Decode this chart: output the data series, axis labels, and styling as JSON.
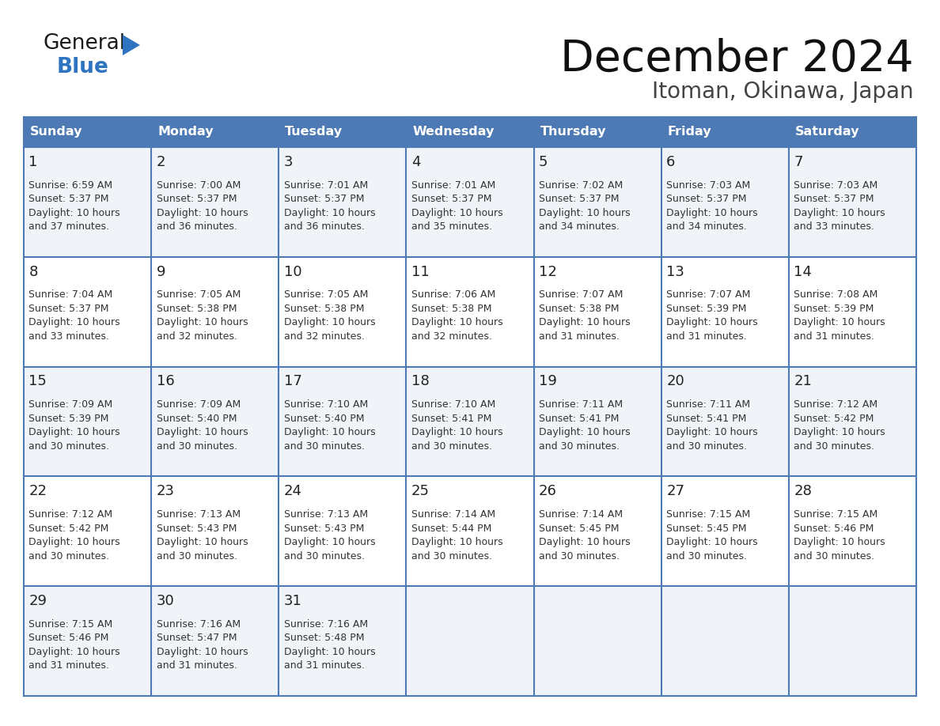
{
  "title": "December 2024",
  "subtitle": "Itoman, Okinawa, Japan",
  "header_color": "#4d7ab5",
  "header_text_color": "#FFFFFF",
  "day_names": [
    "Sunday",
    "Monday",
    "Tuesday",
    "Wednesday",
    "Thursday",
    "Friday",
    "Saturday"
  ],
  "cell_bg_color": "#f0f4f8",
  "cell_bg_white": "#FFFFFF",
  "border_color": "#4d7ab5",
  "day_num_color": "#222222",
  "info_text_color": "#333333",
  "calendar_data": [
    [
      {
        "day": 1,
        "sunrise": "6:59 AM",
        "sunset": "5:37 PM",
        "daylight": "10 hours\nand 37 minutes."
      },
      {
        "day": 2,
        "sunrise": "7:00 AM",
        "sunset": "5:37 PM",
        "daylight": "10 hours\nand 36 minutes."
      },
      {
        "day": 3,
        "sunrise": "7:01 AM",
        "sunset": "5:37 PM",
        "daylight": "10 hours\nand 36 minutes."
      },
      {
        "day": 4,
        "sunrise": "7:01 AM",
        "sunset": "5:37 PM",
        "daylight": "10 hours\nand 35 minutes."
      },
      {
        "day": 5,
        "sunrise": "7:02 AM",
        "sunset": "5:37 PM",
        "daylight": "10 hours\nand 34 minutes."
      },
      {
        "day": 6,
        "sunrise": "7:03 AM",
        "sunset": "5:37 PM",
        "daylight": "10 hours\nand 34 minutes."
      },
      {
        "day": 7,
        "sunrise": "7:03 AM",
        "sunset": "5:37 PM",
        "daylight": "10 hours\nand 33 minutes."
      }
    ],
    [
      {
        "day": 8,
        "sunrise": "7:04 AM",
        "sunset": "5:37 PM",
        "daylight": "10 hours\nand 33 minutes."
      },
      {
        "day": 9,
        "sunrise": "7:05 AM",
        "sunset": "5:38 PM",
        "daylight": "10 hours\nand 32 minutes."
      },
      {
        "day": 10,
        "sunrise": "7:05 AM",
        "sunset": "5:38 PM",
        "daylight": "10 hours\nand 32 minutes."
      },
      {
        "day": 11,
        "sunrise": "7:06 AM",
        "sunset": "5:38 PM",
        "daylight": "10 hours\nand 32 minutes."
      },
      {
        "day": 12,
        "sunrise": "7:07 AM",
        "sunset": "5:38 PM",
        "daylight": "10 hours\nand 31 minutes."
      },
      {
        "day": 13,
        "sunrise": "7:07 AM",
        "sunset": "5:39 PM",
        "daylight": "10 hours\nand 31 minutes."
      },
      {
        "day": 14,
        "sunrise": "7:08 AM",
        "sunset": "5:39 PM",
        "daylight": "10 hours\nand 31 minutes."
      }
    ],
    [
      {
        "day": 15,
        "sunrise": "7:09 AM",
        "sunset": "5:39 PM",
        "daylight": "10 hours\nand 30 minutes."
      },
      {
        "day": 16,
        "sunrise": "7:09 AM",
        "sunset": "5:40 PM",
        "daylight": "10 hours\nand 30 minutes."
      },
      {
        "day": 17,
        "sunrise": "7:10 AM",
        "sunset": "5:40 PM",
        "daylight": "10 hours\nand 30 minutes."
      },
      {
        "day": 18,
        "sunrise": "7:10 AM",
        "sunset": "5:41 PM",
        "daylight": "10 hours\nand 30 minutes."
      },
      {
        "day": 19,
        "sunrise": "7:11 AM",
        "sunset": "5:41 PM",
        "daylight": "10 hours\nand 30 minutes."
      },
      {
        "day": 20,
        "sunrise": "7:11 AM",
        "sunset": "5:41 PM",
        "daylight": "10 hours\nand 30 minutes."
      },
      {
        "day": 21,
        "sunrise": "7:12 AM",
        "sunset": "5:42 PM",
        "daylight": "10 hours\nand 30 minutes."
      }
    ],
    [
      {
        "day": 22,
        "sunrise": "7:12 AM",
        "sunset": "5:42 PM",
        "daylight": "10 hours\nand 30 minutes."
      },
      {
        "day": 23,
        "sunrise": "7:13 AM",
        "sunset": "5:43 PM",
        "daylight": "10 hours\nand 30 minutes."
      },
      {
        "day": 24,
        "sunrise": "7:13 AM",
        "sunset": "5:43 PM",
        "daylight": "10 hours\nand 30 minutes."
      },
      {
        "day": 25,
        "sunrise": "7:14 AM",
        "sunset": "5:44 PM",
        "daylight": "10 hours\nand 30 minutes."
      },
      {
        "day": 26,
        "sunrise": "7:14 AM",
        "sunset": "5:45 PM",
        "daylight": "10 hours\nand 30 minutes."
      },
      {
        "day": 27,
        "sunrise": "7:15 AM",
        "sunset": "5:45 PM",
        "daylight": "10 hours\nand 30 minutes."
      },
      {
        "day": 28,
        "sunrise": "7:15 AM",
        "sunset": "5:46 PM",
        "daylight": "10 hours\nand 30 minutes."
      }
    ],
    [
      {
        "day": 29,
        "sunrise": "7:15 AM",
        "sunset": "5:46 PM",
        "daylight": "10 hours\nand 31 minutes."
      },
      {
        "day": 30,
        "sunrise": "7:16 AM",
        "sunset": "5:47 PM",
        "daylight": "10 hours\nand 31 minutes."
      },
      {
        "day": 31,
        "sunrise": "7:16 AM",
        "sunset": "5:48 PM",
        "daylight": "10 hours\nand 31 minutes."
      },
      null,
      null,
      null,
      null
    ]
  ],
  "logo_color_general": "#1a1a1a",
  "logo_color_blue": "#2e74c0",
  "logo_triangle_color": "#2e74c0"
}
